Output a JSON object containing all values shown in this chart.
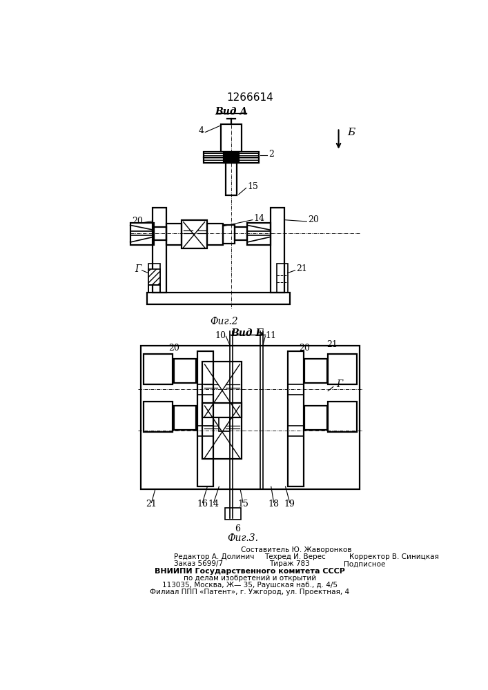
{
  "title": "1266614",
  "fig2_label": "Фиг.2",
  "fig3_label": "Фиг.3.",
  "vid_a_label": "Вид А",
  "vid_b_label": "Вид Б",
  "b_arrow_label": "Б",
  "bg_color": "#ffffff",
  "line_color": "#000000",
  "footer_lines": [
    "Составитель Ю. Жаворонков",
    "Редактор А. Долинич",
    "Техред И. Верес",
    "Корректор В. Синицкая",
    "Заказ 5699/7",
    "Тираж 783",
    "Подписное",
    "ВНИИПИ Государственного комитета СССР",
    "по делам изобретений и открытий",
    "113035, Москва, Ж— 35, Раушская наб., д. 4/5",
    "Филиал ППП «Патент», г. Ужгород, ул. Проектная, 4"
  ]
}
